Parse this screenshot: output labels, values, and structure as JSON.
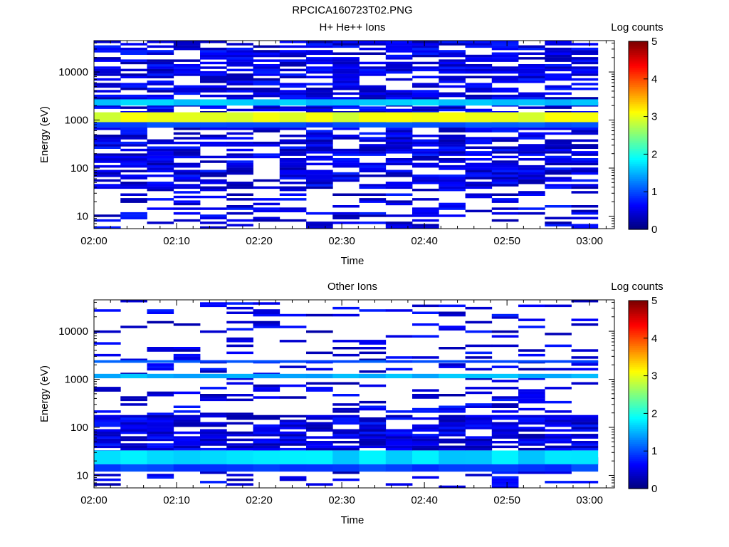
{
  "page": {
    "title": "RPCICA160723T02.PNG"
  },
  "chart_data": [
    {
      "type": "heatmap",
      "title": "H+ He++ Ions",
      "xlabel": "Time",
      "ylabel": "Energy (eV)",
      "colorbar_label": "Log counts",
      "colorbar_range": [
        0,
        5
      ],
      "colorbar_ticks": [
        "0",
        "1",
        "2",
        "3",
        "4",
        "5"
      ],
      "x_tick_labels": [
        "02:00",
        "02:10",
        "02:20",
        "02:30",
        "02:40",
        "02:50",
        "03:00"
      ],
      "y_tick_labels": [
        "10",
        "100",
        "1000",
        "10000"
      ],
      "y_scale": "log",
      "y_range_eV": [
        5.5,
        45000
      ],
      "x_range": [
        "02:00",
        "03:03"
      ],
      "data_range": [
        "02:00",
        "03:01"
      ],
      "time_bins": 19,
      "energy_bins": 80,
      "colormap": "jet",
      "bands": [
        {
          "energy_low_eV": 900,
          "energy_high_eV": 1450,
          "log_counts": 3.0
        },
        {
          "energy_low_eV": 2000,
          "energy_high_eV": 2700,
          "log_counts": 1.6
        },
        {
          "energy_low_eV": 700,
          "energy_high_eV": 900,
          "log_counts": 1.0
        }
      ]
    },
    {
      "type": "heatmap",
      "title": "Other Ions",
      "xlabel": "Time",
      "ylabel": "Energy (eV)",
      "colorbar_label": "Log counts",
      "colorbar_range": [
        0,
        5
      ],
      "colorbar_ticks": [
        "0",
        "1",
        "2",
        "3",
        "4",
        "5"
      ],
      "x_tick_labels": [
        "02:00",
        "02:10",
        "02:20",
        "02:30",
        "02:40",
        "02:50",
        "03:00"
      ],
      "y_tick_labels": [
        "10",
        "100",
        "1000",
        "10000"
      ],
      "y_scale": "log",
      "y_range_eV": [
        5.5,
        45000
      ],
      "x_range": [
        "02:00",
        "03:03"
      ],
      "data_range": [
        "02:00",
        "03:01"
      ],
      "time_bins": 19,
      "energy_bins": 80,
      "colormap": "jet",
      "bands": [
        {
          "energy_low_eV": 1050,
          "energy_high_eV": 1300,
          "log_counts": 1.5
        },
        {
          "energy_low_eV": 17,
          "energy_high_eV": 33,
          "log_counts": 1.7
        },
        {
          "energy_low_eV": 12,
          "energy_high_eV": 17,
          "log_counts": 0.9
        },
        {
          "energy_low_eV": 2200,
          "energy_high_eV": 2500,
          "log_counts": 1.0
        }
      ]
    }
  ]
}
